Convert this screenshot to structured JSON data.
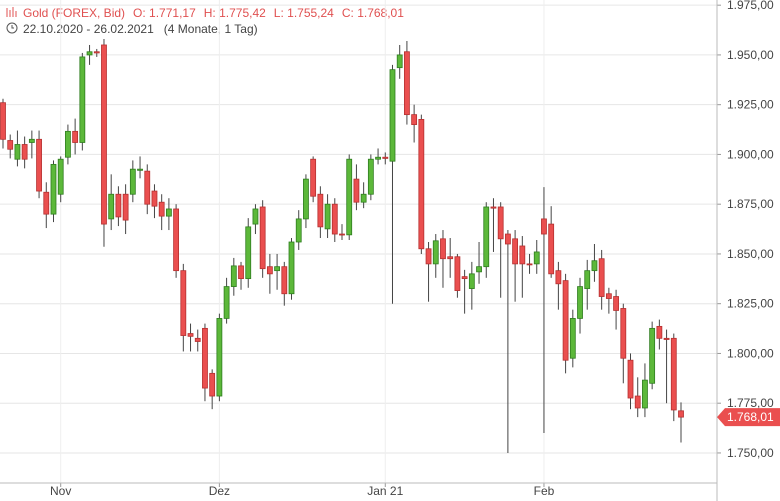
{
  "chart_data": {
    "type": "candlestick",
    "title": "Gold (FOREX, Bid)",
    "ohlc_labels": [
      "O: 1.771,17",
      "H: 1.775,42",
      "L: 1.755,24",
      "C: 1.768,01"
    ],
    "date_range": "22.10.2020 - 26.02.2021",
    "duration": "(4 Monate, 1 Tag)",
    "last_value_label": "1.768,01",
    "up_color": "#5cb83a",
    "down_color": "#ea4f4f",
    "grid": true,
    "ylim": [
      1734.9,
      1977.6
    ],
    "yticks": [
      {
        "value": 1750,
        "label": "1.750,00"
      },
      {
        "value": 1775,
        "label": "1.775,00"
      },
      {
        "value": 1800,
        "label": "1.800,00"
      },
      {
        "value": 1825,
        "label": "1.825,00"
      },
      {
        "value": 1850,
        "label": "1.850,00"
      },
      {
        "value": 1875,
        "label": "1.875,00"
      },
      {
        "value": 1900,
        "label": "1.900,00"
      },
      {
        "value": 1925,
        "label": "1.925,00"
      },
      {
        "value": 1950,
        "label": "1.950,00"
      },
      {
        "value": 1975,
        "label": "1.975,00"
      }
    ],
    "categories": [
      null,
      null,
      null,
      null,
      null,
      null,
      null,
      null,
      "Nov",
      null,
      null,
      null,
      null,
      null,
      null,
      null,
      null,
      null,
      null,
      null,
      null,
      null,
      null,
      null,
      null,
      null,
      null,
      null,
      null,
      null,
      "Dez",
      null,
      null,
      null,
      null,
      null,
      null,
      null,
      null,
      null,
      null,
      null,
      null,
      null,
      null,
      null,
      null,
      null,
      null,
      null,
      null,
      null,
      null,
      "Jan 21",
      null,
      null,
      null,
      null,
      null,
      null,
      null,
      null,
      null,
      null,
      null,
      null,
      null,
      null,
      null,
      null,
      null,
      null,
      null,
      null,
      null,
      "Feb",
      null,
      null,
      null,
      null,
      null,
      null,
      null,
      null,
      null,
      null,
      null,
      null,
      null,
      null,
      null,
      null,
      null,
      null,
      null
    ],
    "open": [
      1926,
      1907,
      1897.6,
      1905,
      1906,
      1907.6,
      1881,
      1870,
      1880,
      1898.6,
      1911.6,
      1906,
      1950,
      1951.6,
      1955,
      1867.6,
      1880,
      1880,
      1880,
      1892,
      1891.6,
      1881.6,
      1876,
      1869,
      1872.6,
      1841.6,
      1810,
      1807.6,
      1812.6,
      1790,
      1778.6,
      1817.6,
      1833.6,
      1844,
      1837.6,
      1865,
      1873.6,
      1843.6,
      1841.6,
      1843.6,
      1830,
      1856,
      1867.6,
      1897.6,
      1880,
      1862.6,
      1875,
      1860,
      1859.6,
      1887.6,
      1876,
      1880,
      1897.6,
      1898.6,
      1896.6,
      1943.6,
      1951.6,
      1920,
      1917.6,
      1852.6,
      1845,
      1857.6,
      1848.6,
      1848.6,
      1838.6,
      1832.6,
      1841,
      1843.6,
      1873.6,
      1873.6,
      1860,
      1857.6,
      1854,
      1845,
      1845,
      1867.6,
      1865,
      1841.6,
      1836.6,
      1797.6,
      1817.6,
      1832.6,
      1841.6,
      1847.6,
      1830,
      1828.6,
      1822.6,
      1796.6,
      1778.6,
      1772.6,
      1785,
      1813.6,
      1807.6,
      1807.6,
      1771.17
    ],
    "high": [
      1928,
      1910,
      1912,
      1909,
      1912,
      1912,
      1886,
      1897,
      1899,
      1915,
      1918,
      1951,
      1955,
      1953,
      1958,
      1890,
      1884,
      1885,
      1897,
      1899,
      1895,
      1885,
      1880,
      1878,
      1875,
      1845,
      1815,
      1812,
      1815,
      1792,
      1820,
      1838,
      1848,
      1846,
      1868,
      1875,
      1877,
      1850,
      1850,
      1846,
      1858,
      1872,
      1890,
      1899,
      1884,
      1880,
      1878,
      1865,
      1900,
      1895,
      1886,
      1900,
      1903,
      1901,
      1945,
      1955,
      1957,
      1925,
      1920,
      1856,
      1860,
      1862,
      1858,
      1850,
      1842,
      1846,
      1856,
      1876,
      1878,
      1876,
      1862,
      1862,
      1859,
      1850,
      1857,
      1883.6,
      1874,
      1846,
      1840,
      1822,
      1838,
      1847,
      1855,
      1852,
      1833,
      1832,
      1825,
      1800,
      1788,
      1795,
      1816,
      1817,
      1812,
      1810,
      1775.42
    ],
    "low": [
      1903,
      1898,
      1894,
      1893,
      1898,
      1878,
      1863,
      1866,
      1876,
      1895,
      1900,
      1902,
      1945,
      1949,
      1853.6,
      1862,
      1864,
      1860,
      1876,
      1888,
      1870,
      1868,
      1862,
      1862,
      1838,
      1801,
      1801,
      1801,
      1776,
      1772,
      1776,
      1815,
      1829,
      1832,
      1833,
      1860,
      1838,
      1830,
      1832,
      1824,
      1827,
      1852,
      1863,
      1876,
      1858,
      1858,
      1856,
      1857,
      1857,
      1872,
      1873,
      1877,
      1895,
      1895,
      1825,
      1938,
      1915,
      1906,
      1850,
      1826,
      1838,
      1833,
      1838,
      1828,
      1820,
      1822,
      1835,
      1838,
      1851,
      1828,
      1750,
      1826,
      1828,
      1840,
      1840,
      1760,
      1838,
      1822,
      1790,
      1793,
      1810,
      1822,
      1836,
      1822,
      1820,
      1812,
      1785,
      1772,
      1768,
      1768,
      1782,
      1802,
      1775,
      1766,
      1755.24
    ],
    "close": [
      1907.6,
      1902.6,
      1905,
      1897.6,
      1907.6,
      1881.6,
      1870,
      1895,
      1897.6,
      1911.6,
      1906,
      1949,
      1951.6,
      1951,
      1865,
      1880,
      1868.6,
      1867,
      1892.6,
      1892.6,
      1875,
      1874,
      1869,
      1872.6,
      1841.6,
      1809,
      1808.6,
      1806,
      1782.6,
      1778.6,
      1817.6,
      1833.6,
      1844,
      1837.6,
      1863.6,
      1872.6,
      1842.6,
      1840,
      1843.6,
      1830,
      1856,
      1867.6,
      1887.6,
      1879,
      1863.6,
      1875,
      1860,
      1859.6,
      1897.6,
      1876,
      1880,
      1897.6,
      1898.6,
      1898,
      1942.6,
      1950,
      1920,
      1915,
      1852.6,
      1845,
      1856.6,
      1847.6,
      1847.6,
      1831.6,
      1837.6,
      1840,
      1843.6,
      1873.6,
      1873,
      1857.6,
      1855,
      1845,
      1845,
      1844.6,
      1851,
      1860,
      1840,
      1835,
      1796.6,
      1817.6,
      1833.6,
      1841.6,
      1846.6,
      1828.6,
      1827.6,
      1821.6,
      1797.6,
      1777.6,
      1772.6,
      1786.6,
      1812.6,
      1807.6,
      1807,
      1771.6,
      1768.01
    ]
  }
}
